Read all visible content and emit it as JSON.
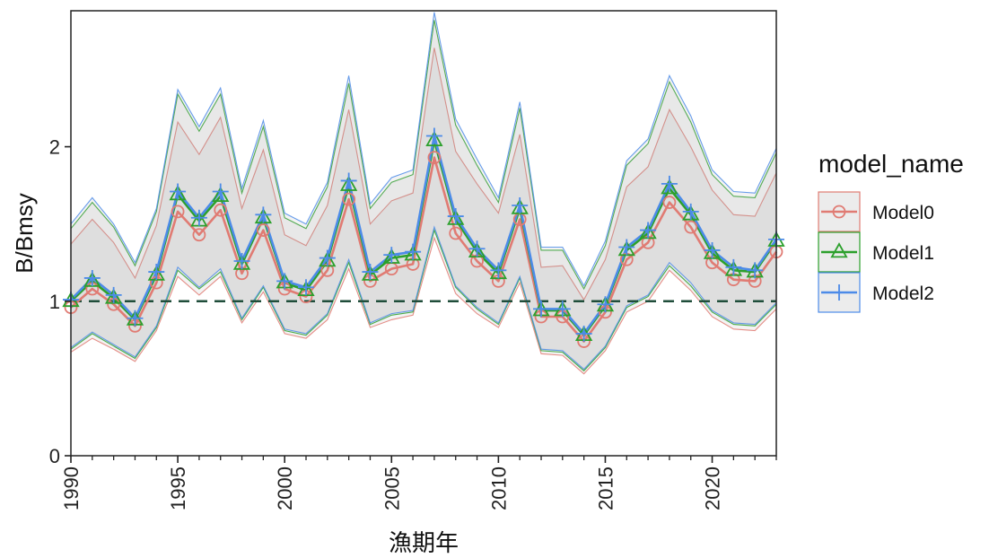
{
  "chart_data": {
    "type": "line",
    "xlabel": "漁期年",
    "ylabel": "B/Bmsy",
    "xlim": [
      1990,
      2023
    ],
    "ylim": [
      0,
      2.88
    ],
    "x_ticks": [
      "1990",
      "1995",
      "2000",
      "2005",
      "2010",
      "2015",
      "2020"
    ],
    "y_ticks": [
      "0",
      "1",
      "2"
    ],
    "reference_line": 1,
    "legend": {
      "title": "model_name",
      "placement": "right",
      "entries": [
        {
          "label": "Model0",
          "color": "#E07B73",
          "marker": "circle"
        },
        {
          "label": "Model1",
          "color": "#2CA02C",
          "marker": "triangle"
        },
        {
          "label": "Model2",
          "color": "#4C8BE8",
          "marker": "plus"
        }
      ]
    },
    "x": [
      1990,
      1991,
      1992,
      1993,
      1994,
      1995,
      1996,
      1997,
      1998,
      1999,
      2000,
      2001,
      2002,
      2003,
      2004,
      2005,
      2006,
      2007,
      2008,
      2009,
      2010,
      2011,
      2012,
      2013,
      2014,
      2015,
      2016,
      2017,
      2018,
      2019,
      2020,
      2021,
      2022,
      2023
    ],
    "series": [
      {
        "name": "Model0",
        "color": "#E07B73",
        "marker": "circle",
        "values": [
          0.96,
          1.08,
          0.98,
          0.84,
          1.12,
          1.58,
          1.43,
          1.59,
          1.18,
          1.46,
          1.08,
          1.03,
          1.2,
          1.66,
          1.13,
          1.21,
          1.24,
          1.93,
          1.44,
          1.26,
          1.13,
          1.53,
          0.9,
          0.9,
          0.74,
          0.93,
          1.27,
          1.38,
          1.64,
          1.48,
          1.25,
          1.14,
          1.13,
          1.32
        ],
        "upper": [
          1.37,
          1.53,
          1.38,
          1.15,
          1.49,
          2.16,
          1.95,
          2.19,
          1.6,
          1.98,
          1.43,
          1.36,
          1.62,
          2.24,
          1.5,
          1.65,
          1.7,
          2.64,
          1.97,
          1.76,
          1.57,
          2.08,
          1.22,
          1.23,
          1.01,
          1.27,
          1.74,
          1.87,
          2.24,
          2.0,
          1.72,
          1.56,
          1.55,
          1.83
        ],
        "lower": [
          0.67,
          0.76,
          0.69,
          0.61,
          0.81,
          1.16,
          1.04,
          1.16,
          0.86,
          1.06,
          0.79,
          0.76,
          0.88,
          1.21,
          0.83,
          0.88,
          0.91,
          1.41,
          1.05,
          0.92,
          0.83,
          1.12,
          0.66,
          0.65,
          0.53,
          0.68,
          0.93,
          1.0,
          1.2,
          1.07,
          0.9,
          0.82,
          0.81,
          0.95
        ]
      },
      {
        "name": "Model1",
        "color": "#2CA02C",
        "marker": "triangle",
        "values": [
          1.0,
          1.13,
          1.02,
          0.88,
          1.17,
          1.69,
          1.52,
          1.68,
          1.24,
          1.54,
          1.12,
          1.07,
          1.26,
          1.75,
          1.17,
          1.28,
          1.3,
          2.04,
          1.53,
          1.32,
          1.18,
          1.6,
          0.94,
          0.94,
          0.78,
          0.97,
          1.33,
          1.44,
          1.73,
          1.56,
          1.31,
          1.2,
          1.19,
          1.39
        ],
        "upper": [
          1.47,
          1.64,
          1.48,
          1.23,
          1.58,
          2.34,
          2.1,
          2.34,
          1.7,
          2.13,
          1.54,
          1.47,
          1.74,
          2.41,
          1.6,
          1.77,
          1.82,
          2.82,
          2.14,
          1.88,
          1.64,
          2.25,
          1.33,
          1.33,
          1.08,
          1.36,
          1.88,
          2.02,
          2.42,
          2.16,
          1.82,
          1.68,
          1.67,
          1.96
        ],
        "lower": [
          0.69,
          0.79,
          0.71,
          0.63,
          0.83,
          1.2,
          1.08,
          1.19,
          0.88,
          1.09,
          0.81,
          0.78,
          0.91,
          1.25,
          0.85,
          0.91,
          0.93,
          1.46,
          1.09,
          0.95,
          0.85,
          1.15,
          0.68,
          0.67,
          0.55,
          0.7,
          0.96,
          1.03,
          1.23,
          1.1,
          0.93,
          0.85,
          0.84,
          0.98
        ]
      },
      {
        "name": "Model2",
        "color": "#4C8BE8",
        "marker": "plus",
        "values": [
          1.01,
          1.15,
          1.04,
          0.89,
          1.19,
          1.71,
          1.54,
          1.71,
          1.26,
          1.56,
          1.13,
          1.09,
          1.28,
          1.78,
          1.19,
          1.3,
          1.32,
          2.07,
          1.55,
          1.34,
          1.2,
          1.62,
          0.95,
          0.95,
          0.79,
          0.98,
          1.35,
          1.46,
          1.76,
          1.58,
          1.33,
          1.22,
          1.2,
          1.4
        ],
        "upper": [
          1.5,
          1.67,
          1.5,
          1.25,
          1.6,
          2.37,
          2.13,
          2.38,
          1.73,
          2.17,
          1.57,
          1.5,
          1.77,
          2.46,
          1.63,
          1.8,
          1.85,
          2.87,
          2.18,
          1.92,
          1.67,
          2.29,
          1.35,
          1.35,
          1.1,
          1.39,
          1.91,
          2.05,
          2.46,
          2.2,
          1.85,
          1.71,
          1.7,
          1.99
        ],
        "lower": [
          0.7,
          0.8,
          0.72,
          0.64,
          0.84,
          1.22,
          1.09,
          1.21,
          0.89,
          1.1,
          0.82,
          0.79,
          0.92,
          1.27,
          0.86,
          0.92,
          0.94,
          1.48,
          1.1,
          0.96,
          0.86,
          1.16,
          0.69,
          0.68,
          0.56,
          0.71,
          0.97,
          1.04,
          1.25,
          1.12,
          0.94,
          0.86,
          0.85,
          0.99
        ]
      }
    ]
  }
}
